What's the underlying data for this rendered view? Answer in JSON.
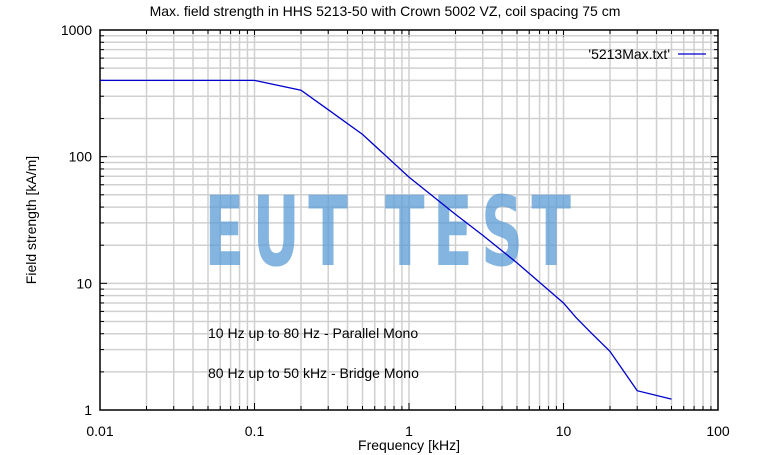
{
  "chart_data": {
    "type": "line",
    "title": "Max. field strength in HHS 5213-50 with Crown 5002 VZ, coil spacing 75 cm",
    "xlabel": "Frequency [kHz]",
    "ylabel": "Field strength [kA/m]",
    "xscale": "log",
    "yscale": "log",
    "xlim": [
      0.01,
      100
    ],
    "ylim": [
      1,
      1000
    ],
    "x_ticks": [
      "0.01",
      "0.1",
      "1",
      "10",
      "100"
    ],
    "y_ticks": [
      "1",
      "10",
      "100",
      "1000"
    ],
    "grid": true,
    "legend_position": "top-right",
    "series": [
      {
        "name": "'5213Max.txt'",
        "color": "#0000cc",
        "x": [
          0.01,
          0.1,
          0.2,
          0.3,
          0.5,
          1,
          2,
          3,
          5,
          10,
          12,
          15,
          20,
          30,
          50
        ],
        "values": [
          400,
          400,
          335,
          235,
          150,
          69,
          35,
          24,
          14.5,
          7,
          5.4,
          4.1,
          2.9,
          1.42,
          1.22
        ]
      }
    ],
    "annotations": [
      "10 Hz up to 80 Hz - Parallel Mono",
      "80 Hz up to 50 kHz - Bridge Mono"
    ],
    "watermark": "EUT TEST"
  },
  "colors": {
    "line": "#0000cc",
    "grid": "#d0d0d0",
    "axis": "#000000",
    "watermark": "#5b9bd5"
  }
}
